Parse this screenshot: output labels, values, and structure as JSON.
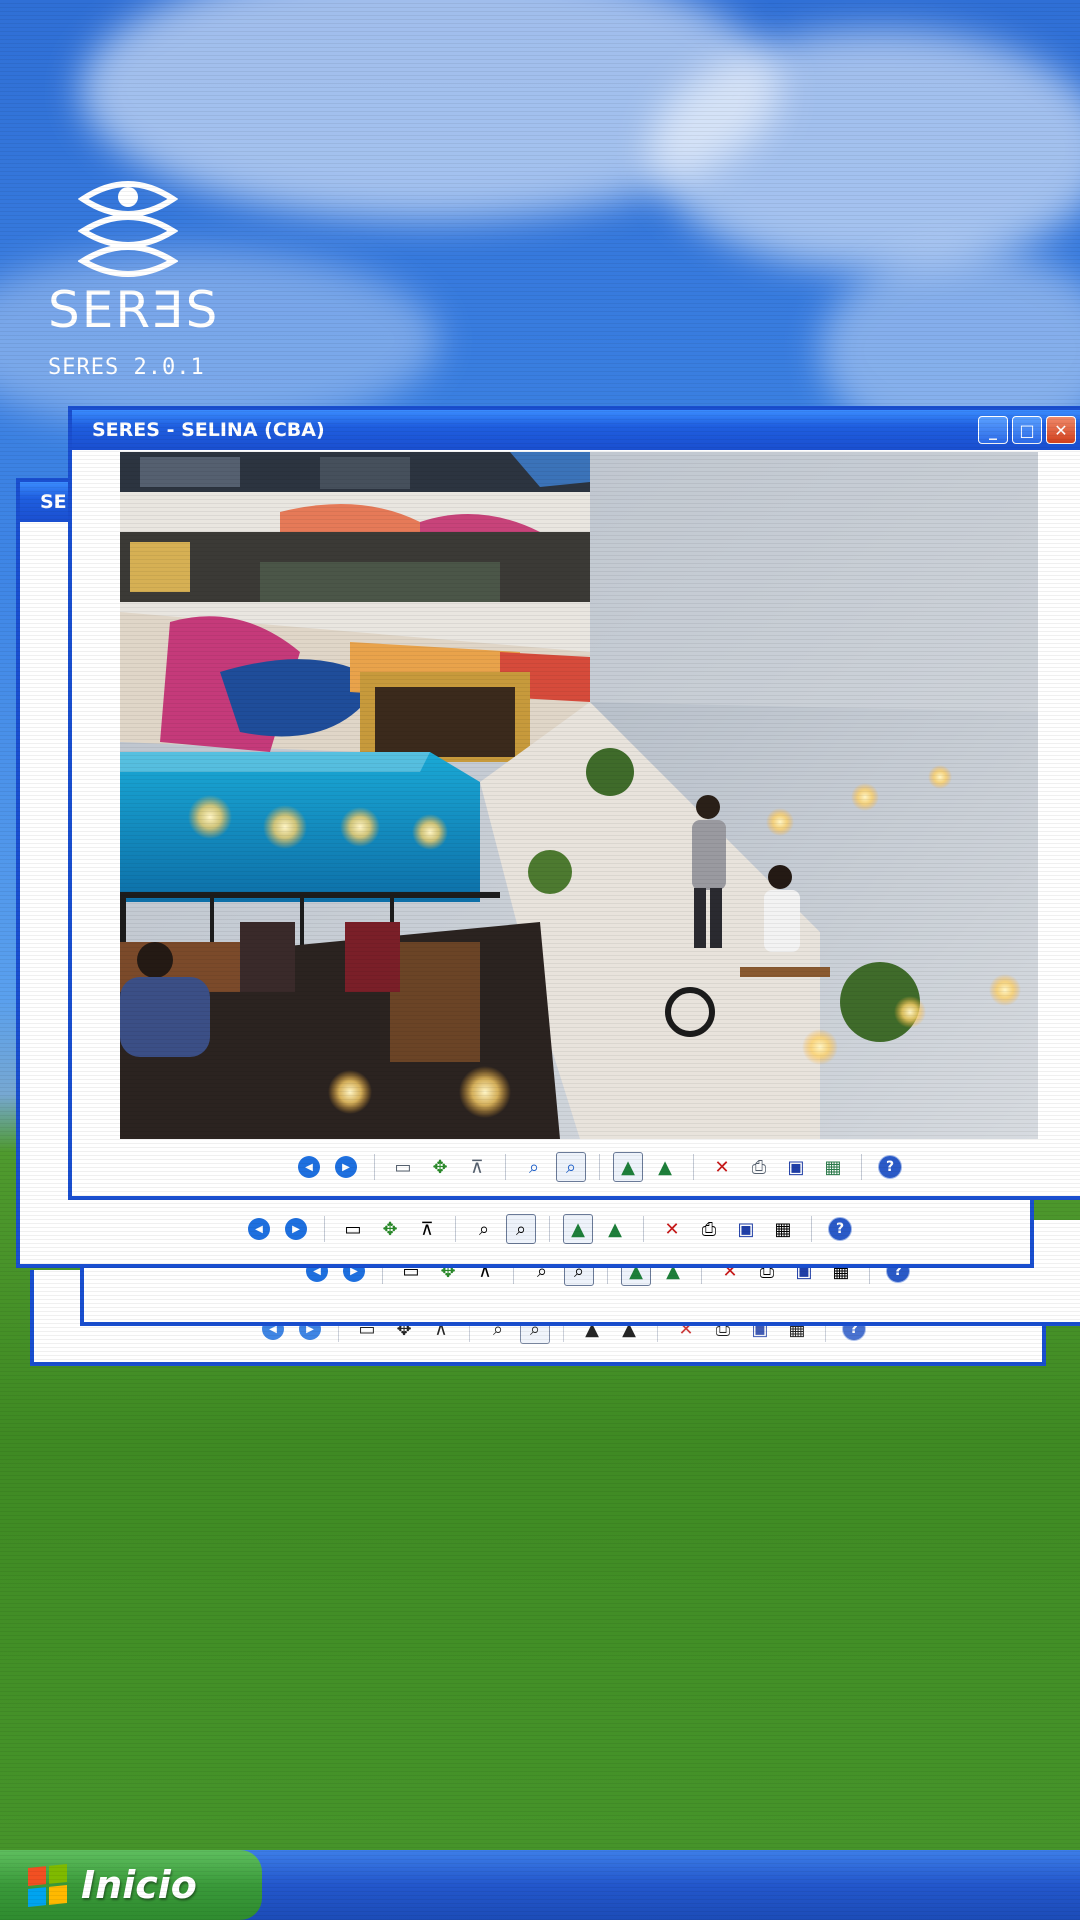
{
  "brand": {
    "logo_text": "SERƎS",
    "version": "SERES 2.0.1"
  },
  "windows": {
    "main_title": "SERES - SELINA (CBA)",
    "behind_title": "SE",
    "title_buttons": [
      "minimize",
      "maximize",
      "close"
    ]
  },
  "toolbar": {
    "icons": [
      "previous-icon",
      "next-icon",
      "best-fit-icon",
      "actual-size-icon",
      "slideshow-icon",
      "zoom-in-icon",
      "zoom-out-icon",
      "rotate-clockwise-icon",
      "rotate-counterclockwise-icon",
      "delete-icon",
      "print-icon",
      "save-icon",
      "edit-icon",
      "help-icon"
    ],
    "selected": [
      "zoom-out-icon",
      "rotate-clockwise-icon"
    ]
  },
  "taskbar": {
    "start_label": "Inicio"
  },
  "colors": {
    "window_border": "#1a4fd0",
    "title_gradient_top": "#3b8cff",
    "start_green": "#3a9a3a",
    "taskbar_blue": "#2357cc"
  }
}
